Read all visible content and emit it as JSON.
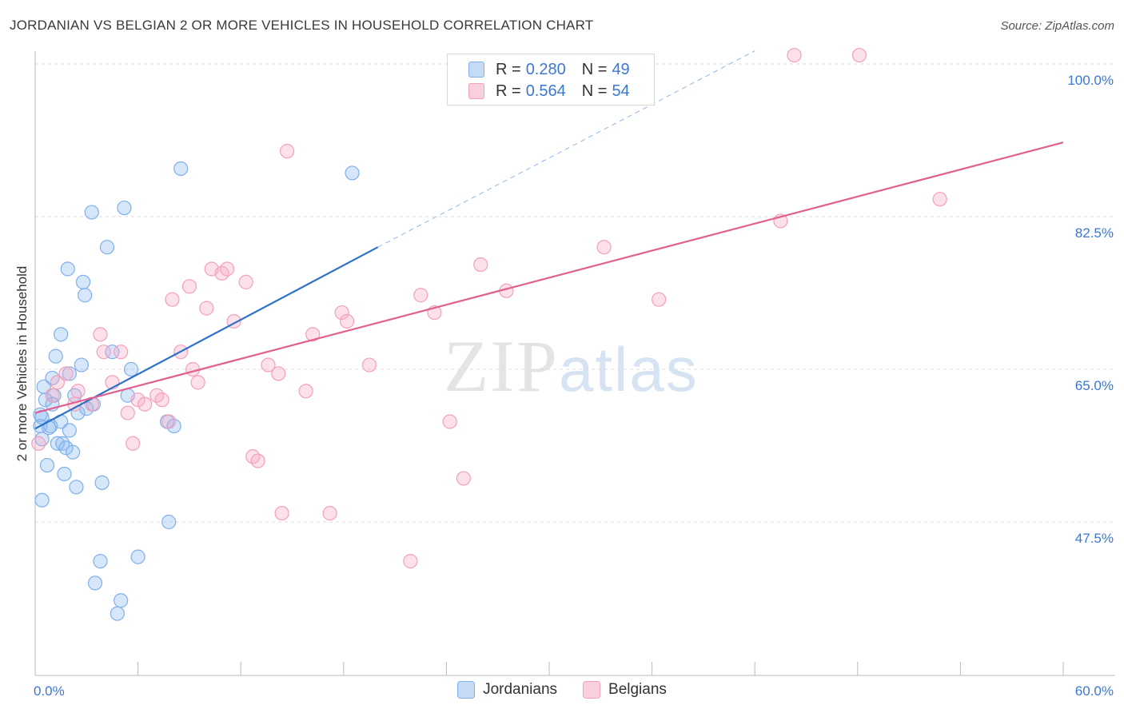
{
  "title": "JORDANIAN VS BELGIAN 2 OR MORE VEHICLES IN HOUSEHOLD CORRELATION CHART",
  "source": "Source: ZipAtlas.com",
  "watermark": {
    "zip": "ZIP",
    "atlas": "atlas"
  },
  "colors": {
    "jordanian": "#7fb0ea",
    "belgian": "#f2a0bb",
    "jordanian_line": "#2d72c8",
    "belgian_line": "#e06090",
    "axis_text": "#3b78d0"
  },
  "legend": {
    "rows": [
      {
        "r_label": "R =",
        "r_value": "0.280",
        "n_label": "N =",
        "n_value": "49"
      },
      {
        "r_label": "R =",
        "r_value": "0.564",
        "n_label": "N =",
        "n_value": "54"
      }
    ]
  },
  "bottom_legend": [
    "Jordanians",
    "Belgians"
  ],
  "chart_data": {
    "type": "scatter",
    "title": "JORDANIAN VS BELGIAN 2 OR MORE VEHICLES IN HOUSEHOLD CORRELATION CHART",
    "xlabel": "",
    "ylabel": "2 or more Vehicles in Household",
    "xlim": [
      0,
      60
    ],
    "ylim": [
      31.5,
      102
    ],
    "x_tick_labels": [
      "0.0%",
      "60.0%"
    ],
    "y_ticks": [
      47.5,
      65.0,
      82.5,
      100.0
    ],
    "y_tick_labels": [
      "47.5%",
      "65.0%",
      "82.5%",
      "100.0%"
    ],
    "grid": true,
    "legend_position": "top-center",
    "series": [
      {
        "name": "Jordanians",
        "r": 0.28,
        "n": 49,
        "trend": {
          "x": [
            0,
            20
          ],
          "y": [
            58.2,
            79.0
          ],
          "dashed_to": [
            42,
            101.5
          ]
        },
        "points": [
          [
            0.3,
            58.5
          ],
          [
            0.3,
            59.8
          ],
          [
            0.4,
            50.0
          ],
          [
            0.4,
            57.0
          ],
          [
            0.4,
            59.5
          ],
          [
            0.7,
            54.0
          ],
          [
            0.8,
            58.3
          ],
          [
            0.9,
            58.5
          ],
          [
            1.0,
            64.0
          ],
          [
            1.1,
            62.0
          ],
          [
            1.2,
            66.5
          ],
          [
            1.3,
            56.5
          ],
          [
            1.5,
            69.0
          ],
          [
            1.6,
            56.5
          ],
          [
            1.7,
            53.0
          ],
          [
            1.8,
            56.0
          ],
          [
            1.9,
            76.5
          ],
          [
            2.0,
            64.5
          ],
          [
            2.2,
            55.5
          ],
          [
            2.3,
            62.0
          ],
          [
            2.4,
            51.5
          ],
          [
            2.5,
            60.0
          ],
          [
            2.7,
            65.5
          ],
          [
            2.8,
            75.0
          ],
          [
            2.9,
            73.5
          ],
          [
            3.4,
            61.0
          ],
          [
            3.3,
            83.0
          ],
          [
            3.5,
            40.5
          ],
          [
            3.8,
            43.0
          ],
          [
            3.9,
            52.0
          ],
          [
            4.2,
            79.0
          ],
          [
            4.5,
            67.0
          ],
          [
            4.8,
            37.0
          ],
          [
            5.0,
            38.5
          ],
          [
            5.2,
            83.5
          ],
          [
            5.4,
            62.0
          ],
          [
            5.6,
            65.0
          ],
          [
            6.0,
            43.5
          ],
          [
            7.7,
            59.0
          ],
          [
            7.8,
            47.5
          ],
          [
            8.1,
            58.5
          ],
          [
            8.5,
            88.0
          ],
          [
            18.5,
            87.5
          ],
          [
            0.5,
            63.0
          ],
          [
            1.0,
            61.0
          ],
          [
            2.0,
            58.0
          ],
          [
            3.0,
            60.5
          ],
          [
            1.5,
            59.0
          ],
          [
            0.6,
            61.5
          ]
        ]
      },
      {
        "name": "Belgians",
        "r": 0.564,
        "n": 54,
        "trend": {
          "x": [
            0,
            60
          ],
          "y": [
            60.0,
            91.0
          ]
        },
        "points": [
          [
            0.2,
            56.5
          ],
          [
            1.0,
            62.0
          ],
          [
            1.3,
            63.5
          ],
          [
            1.8,
            64.5
          ],
          [
            2.3,
            61.0
          ],
          [
            2.5,
            62.5
          ],
          [
            3.3,
            61.0
          ],
          [
            3.8,
            69.0
          ],
          [
            4.0,
            67.0
          ],
          [
            4.5,
            63.5
          ],
          [
            5.0,
            67.0
          ],
          [
            5.4,
            60.0
          ],
          [
            5.7,
            56.5
          ],
          [
            6.0,
            61.5
          ],
          [
            6.4,
            61.0
          ],
          [
            7.1,
            62.0
          ],
          [
            7.4,
            61.5
          ],
          [
            7.8,
            59.0
          ],
          [
            8.0,
            73.0
          ],
          [
            8.5,
            67.0
          ],
          [
            9.0,
            74.5
          ],
          [
            9.2,
            65.0
          ],
          [
            9.5,
            63.5
          ],
          [
            10.0,
            72.0
          ],
          [
            10.3,
            76.5
          ],
          [
            10.9,
            76.0
          ],
          [
            11.2,
            76.5
          ],
          [
            11.6,
            70.5
          ],
          [
            12.3,
            75.0
          ],
          [
            12.7,
            55.0
          ],
          [
            13.0,
            54.5
          ],
          [
            13.6,
            65.5
          ],
          [
            14.2,
            64.5
          ],
          [
            14.4,
            48.5
          ],
          [
            14.7,
            90.0
          ],
          [
            15.8,
            62.5
          ],
          [
            16.2,
            69.0
          ],
          [
            17.2,
            48.5
          ],
          [
            17.9,
            71.5
          ],
          [
            18.2,
            70.5
          ],
          [
            19.5,
            65.5
          ],
          [
            21.9,
            43.0
          ],
          [
            22.5,
            73.5
          ],
          [
            23.3,
            71.5
          ],
          [
            24.2,
            59.0
          ],
          [
            25.0,
            52.5
          ],
          [
            26.0,
            77.0
          ],
          [
            27.5,
            74.0
          ],
          [
            33.2,
            79.0
          ],
          [
            36.4,
            73.0
          ],
          [
            43.5,
            82.0
          ],
          [
            44.3,
            101.0
          ],
          [
            48.1,
            101.0
          ],
          [
            52.8,
            84.5
          ]
        ]
      }
    ]
  }
}
